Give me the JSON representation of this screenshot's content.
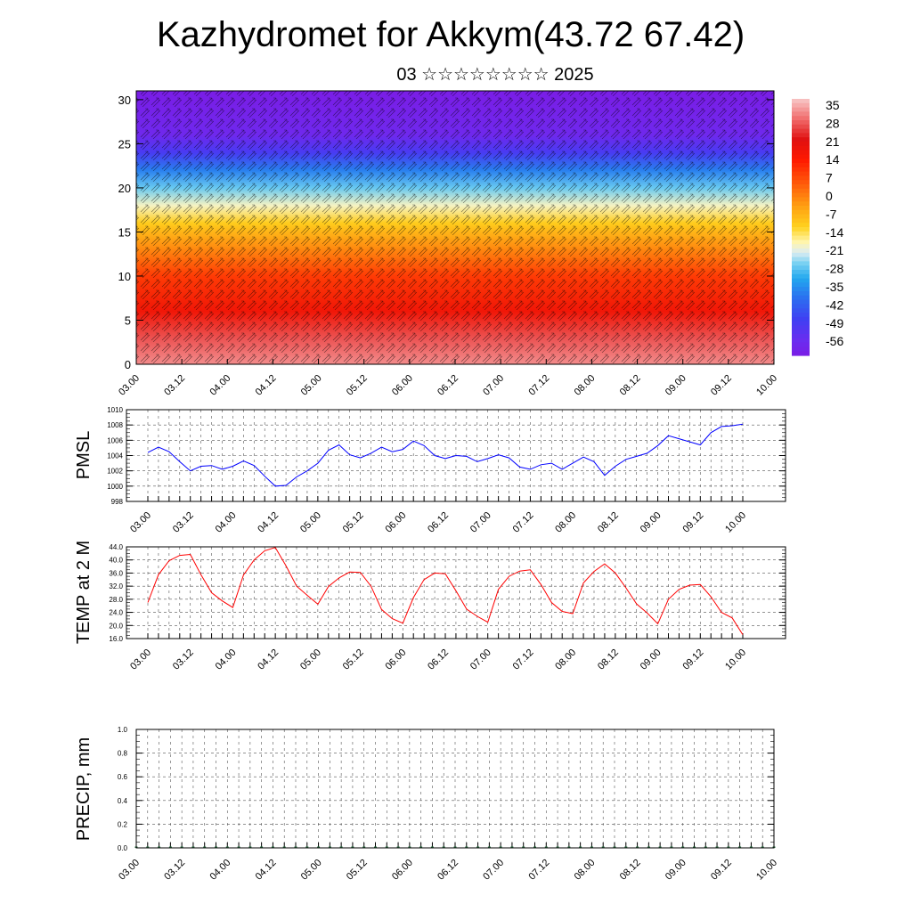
{
  "title": "Kazhydromet for Akkym(43.72 67.42)",
  "subtitle": "03 ☆☆☆☆☆☆☆☆ 2025",
  "time_ticks": [
    "03.00",
    "03.12",
    "04.00",
    "04.12",
    "05.00",
    "05.12",
    "06.00",
    "06.12",
    "07.00",
    "07.12",
    "08.00",
    "08.12",
    "09.00",
    "09.12",
    "10.00"
  ],
  "chart_data": [
    {
      "type": "heatmap",
      "title": "",
      "xlabel": "",
      "ylabel": "",
      "x": [
        "03.00",
        "03.12",
        "04.00",
        "04.12",
        "05.00",
        "05.12",
        "06.00",
        "06.12",
        "07.00",
        "07.12",
        "08.00",
        "08.12",
        "09.00",
        "09.12",
        "10.00"
      ],
      "y_ticks": [
        "0",
        "5",
        "10",
        "15",
        "20",
        "25",
        "30"
      ],
      "ylim": [
        0,
        31
      ],
      "colorbar": {
        "labels": [
          "35",
          "28",
          "21",
          "14",
          "7",
          "0",
          "-7",
          "-14",
          "-21",
          "-28",
          "-35",
          "-42",
          "-49",
          "-56"
        ],
        "range": [
          -60,
          38
        ]
      },
      "temperature_profile_by_height": [
        {
          "height": 0,
          "value": 33
        },
        {
          "height": 3,
          "value": 28
        },
        {
          "height": 6,
          "value": 18
        },
        {
          "height": 10,
          "value": 10
        },
        {
          "height": 13,
          "value": 0
        },
        {
          "height": 16,
          "value": -10
        },
        {
          "height": 18,
          "value": -18
        },
        {
          "height": 20,
          "value": -26
        },
        {
          "height": 22,
          "value": -36
        },
        {
          "height": 24,
          "value": -48
        },
        {
          "height": 26,
          "value": -56
        },
        {
          "height": 31,
          "value": -60
        }
      ],
      "overlay": "wind barbs"
    },
    {
      "type": "line",
      "ylabel": "PMSL",
      "y_ticks": [
        "998",
        "1000",
        "1002",
        "1004",
        "1006",
        "1008",
        "1010"
      ],
      "ylim": [
        998,
        1010
      ],
      "grid": true,
      "series": [
        {
          "color": "#0000ff",
          "values": [
            1004.4,
            1005.1,
            1004.5,
            1003.2,
            1002.0,
            1002.6,
            1002.7,
            1002.2,
            1002.6,
            1003.3,
            1002.7,
            1001.3,
            1000.0,
            1000.1,
            1001.2,
            1002.0,
            1003.0,
            1004.7,
            1005.4,
            1004.1,
            1003.7,
            1004.3,
            1005.1,
            1004.5,
            1004.8,
            1005.9,
            1005.3,
            1004.0,
            1003.6,
            1004.0,
            1003.9,
            1003.2,
            1003.6,
            1004.1,
            1003.7,
            1002.5,
            1002.2,
            1002.8,
            1003.0,
            1002.2,
            1003.0,
            1003.8,
            1003.2,
            1001.4,
            1002.6,
            1003.5,
            1003.9,
            1004.3,
            1005.3,
            1006.6,
            1006.2,
            1005.8,
            1005.4,
            1007.0,
            1007.8,
            1007.9,
            1008.1
          ]
        }
      ]
    },
    {
      "type": "line",
      "ylabel": "TEMP at 2 M",
      "y_ticks": [
        "16.0",
        "20.0",
        "24.0",
        "28.0",
        "32.0",
        "36.0",
        "40.0",
        "44.0"
      ],
      "ylim": [
        16,
        44
      ],
      "grid": true,
      "series": [
        {
          "color": "#ff0000",
          "values": [
            27.0,
            35.5,
            39.8,
            41.4,
            41.7,
            35.5,
            30.0,
            27.5,
            25.5,
            35.4,
            40.0,
            42.8,
            43.8,
            38.2,
            32.0,
            29.2,
            26.5,
            31.9,
            34.5,
            36.3,
            36.2,
            32.0,
            24.9,
            22.1,
            20.7,
            28.5,
            34.0,
            36.0,
            35.8,
            30.6,
            25.0,
            22.8,
            21.0,
            31.0,
            35.0,
            36.6,
            37.0,
            32.5,
            27.0,
            24.3,
            23.6,
            33.0,
            36.5,
            38.8,
            36.0,
            31.5,
            26.6,
            23.8,
            20.5,
            28.0,
            31.0,
            32.3,
            32.5,
            28.8,
            24.0,
            22.3,
            17.2
          ]
        }
      ]
    },
    {
      "type": "bar",
      "ylabel": "PRECIP, mm",
      "y_ticks": [
        "0.0",
        "0.2",
        "0.4",
        "0.6",
        "0.8",
        "1.0"
      ],
      "ylim": [
        0,
        1.0
      ],
      "grid": true,
      "values": [
        0,
        0,
        0,
        0,
        0,
        0,
        0,
        0,
        0,
        0,
        0,
        0,
        0,
        0,
        0,
        0,
        0,
        0,
        0,
        0,
        0,
        0,
        0,
        0,
        0,
        0,
        0,
        0,
        0,
        0,
        0,
        0,
        0,
        0,
        0,
        0,
        0,
        0,
        0,
        0,
        0,
        0,
        0,
        0,
        0,
        0,
        0,
        0,
        0,
        0,
        0,
        0,
        0,
        0,
        0,
        0,
        0
      ]
    }
  ]
}
